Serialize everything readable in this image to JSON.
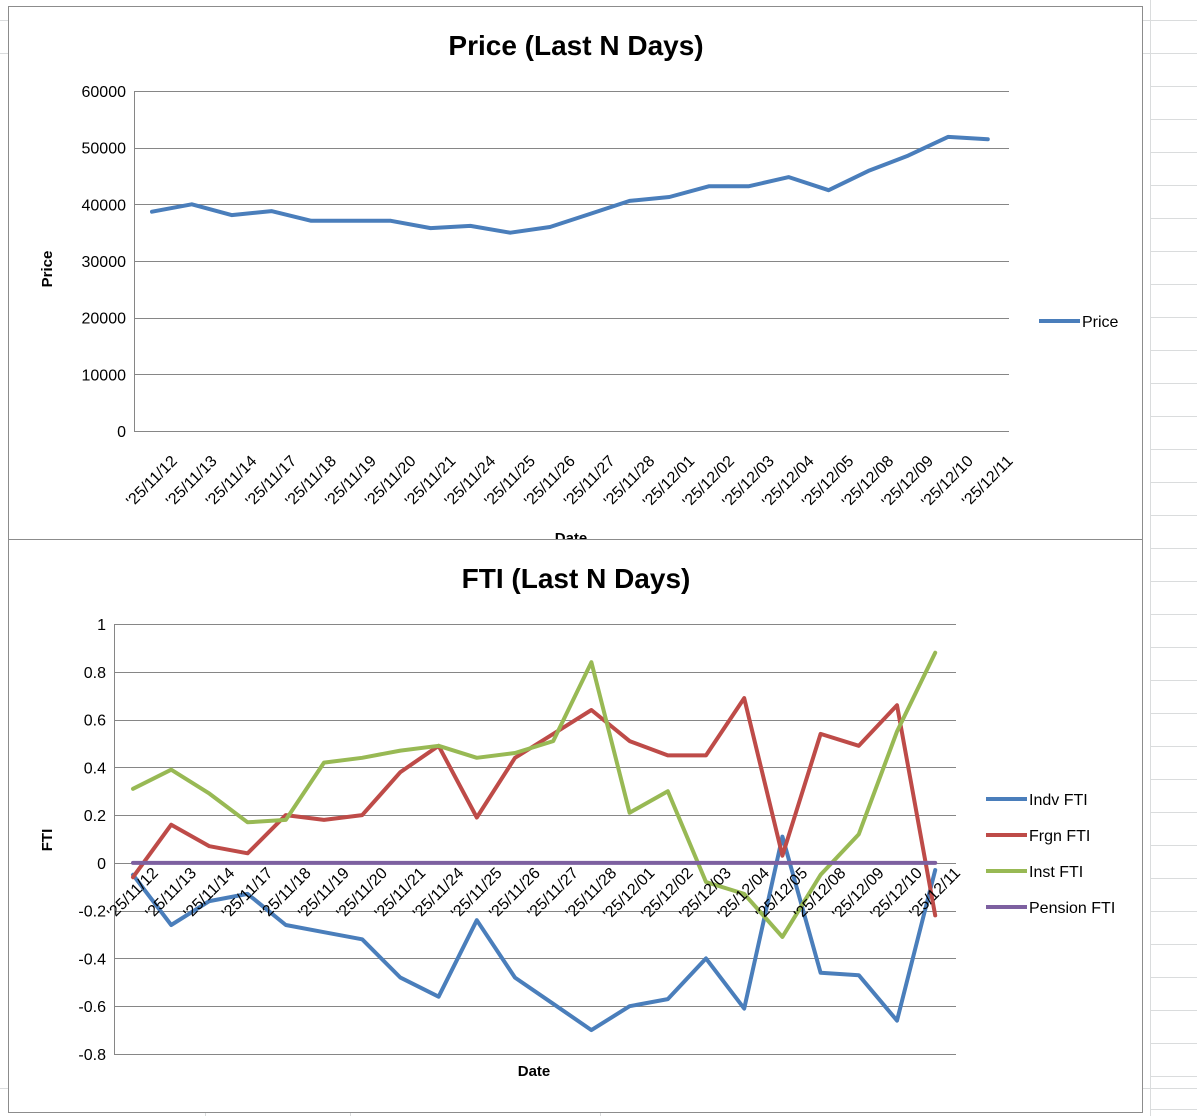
{
  "chart_data": [
    {
      "type": "line",
      "title": "Price (Last N Days)",
      "xlabel": "Date",
      "ylabel": "Price",
      "ylim": [
        0,
        60000
      ],
      "yticks": [
        0,
        10000,
        20000,
        30000,
        40000,
        50000,
        60000
      ],
      "grid": true,
      "legend": "right",
      "categories": [
        "'25/11/12",
        "'25/11/13",
        "'25/11/14",
        "'25/11/17",
        "'25/11/18",
        "'25/11/19",
        "'25/11/20",
        "'25/11/21",
        "'25/11/24",
        "'25/11/25",
        "'25/11/26",
        "'25/11/27",
        "'25/11/28",
        "'25/12/01",
        "'25/12/02",
        "'25/12/03",
        "'25/12/04",
        "'25/12/05",
        "'25/12/08",
        "'25/12/09",
        "'25/12/10",
        "'25/12/11"
      ],
      "series": [
        {
          "name": "Price",
          "color": "#4a7ebb",
          "values": [
            38700,
            40000,
            38100,
            38800,
            37100,
            37100,
            37100,
            35800,
            36200,
            35000,
            36000,
            38300,
            40600,
            41300,
            43200,
            43200,
            44800,
            42500,
            45900,
            48600,
            51900,
            51500
          ]
        }
      ]
    },
    {
      "type": "line",
      "title": "FTI (Last N Days)",
      "xlabel": "Date",
      "ylabel": "FTI",
      "ylim": [
        -0.8,
        1
      ],
      "yticks": [
        -0.8,
        -0.6,
        -0.4,
        -0.2,
        0,
        0.2,
        0.4,
        0.6,
        0.8,
        1
      ],
      "grid": true,
      "legend": "right",
      "categories": [
        "'25/11/12",
        "'25/11/13",
        "'25/11/14",
        "'25/11/17",
        "'25/11/18",
        "'25/11/19",
        "'25/11/20",
        "'25/11/21",
        "'25/11/24",
        "'25/11/25",
        "'25/11/26",
        "'25/11/27",
        "'25/11/28",
        "'25/12/01",
        "'25/12/02",
        "'25/12/03",
        "'25/12/04",
        "'25/12/05",
        "'25/12/08",
        "'25/12/09",
        "'25/12/10",
        "'25/12/11"
      ],
      "series": [
        {
          "name": "Indv FTI",
          "color": "#4a7ebb",
          "values": [
            -0.05,
            -0.26,
            -0.16,
            -0.13,
            -0.26,
            -0.29,
            -0.32,
            -0.48,
            -0.56,
            -0.24,
            -0.48,
            -0.59,
            -0.7,
            -0.6,
            -0.57,
            -0.4,
            -0.61,
            0.11,
            -0.46,
            -0.47,
            -0.66,
            -0.03
          ]
        },
        {
          "name": "Frgn FTI",
          "color": "#be4b48",
          "values": [
            -0.06,
            0.16,
            0.07,
            0.04,
            0.2,
            0.18,
            0.2,
            0.38,
            0.49,
            0.19,
            0.44,
            0.54,
            0.64,
            0.51,
            0.45,
            0.45,
            0.69,
            0.03,
            0.54,
            0.49,
            0.66,
            -0.22
          ]
        },
        {
          "name": "Inst FTI",
          "color": "#98b954",
          "values": [
            0.31,
            0.39,
            0.29,
            0.17,
            0.18,
            0.42,
            0.44,
            0.47,
            0.49,
            0.44,
            0.46,
            0.51,
            0.84,
            0.21,
            0.3,
            -0.08,
            -0.13,
            -0.31,
            -0.05,
            0.12,
            0.55,
            0.88
          ]
        },
        {
          "name": "Pension FTI",
          "color": "#7d60a0",
          "values": [
            0,
            0,
            0,
            0,
            0,
            0,
            0,
            0,
            0,
            0,
            0,
            0,
            0,
            0,
            0,
            0,
            0,
            0,
            0,
            0,
            0,
            0
          ]
        }
      ]
    }
  ]
}
